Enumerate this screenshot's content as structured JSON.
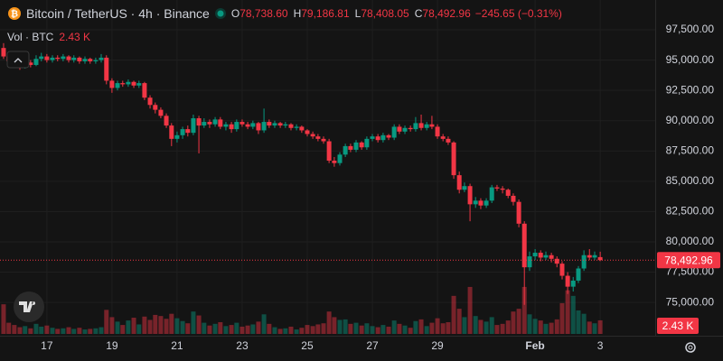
{
  "chart_data": {
    "type": "candlestick",
    "symbol": "Bitcoin / TetherUS · 4h · Binance",
    "ohlc": [
      {
        "key": "O",
        "value": "78,738.60"
      },
      {
        "key": "H",
        "value": "79,186.81"
      },
      {
        "key": "L",
        "value": "78,408.05"
      },
      {
        "key": "C",
        "value": "78,492.96"
      }
    ],
    "change": "−245.65 (−0.31%)",
    "volume_title": "Vol · BTC",
    "volume_label": "2.43 K",
    "last_price": {
      "value": 78492.96,
      "label": "78,492.96"
    },
    "up_color": "#089981",
    "down_color": "#f23645",
    "columns": [
      "x",
      "open",
      "high",
      "low",
      "close",
      "volume"
    ],
    "candles": [
      [
        15.67,
        96000,
        96400,
        95100,
        95300,
        5.3
      ],
      [
        15.83,
        95300,
        95500,
        94600,
        94900,
        2.0
      ],
      [
        16,
        94900,
        95200,
        94400,
        94700,
        1.6
      ],
      [
        16.17,
        94700,
        94900,
        94200,
        94500,
        1.2
      ],
      [
        16.33,
        94500,
        95100,
        94300,
        94800,
        1.4
      ],
      [
        16.5,
        94800,
        95000,
        94400,
        94600,
        1.0
      ],
      [
        16.67,
        94600,
        95400,
        94500,
        95100,
        1.8
      ],
      [
        16.83,
        95100,
        95600,
        94900,
        95300,
        1.3
      ],
      [
        17,
        95300,
        95500,
        94800,
        95000,
        1.5
      ],
      [
        17.17,
        95000,
        95400,
        94800,
        95200,
        1.1
      ],
      [
        17.33,
        95200,
        95400,
        94900,
        95100,
        0.9
      ],
      [
        17.5,
        95100,
        95500,
        94900,
        95300,
        1.0
      ],
      [
        17.67,
        95300,
        95400,
        94800,
        95000,
        1.2
      ],
      [
        17.83,
        95000,
        95400,
        94800,
        95200,
        0.9
      ],
      [
        18,
        95200,
        95300,
        94700,
        94900,
        1.1
      ],
      [
        18.17,
        94900,
        95300,
        94700,
        95100,
        0.8
      ],
      [
        18.33,
        95100,
        95200,
        94700,
        94900,
        0.9
      ],
      [
        18.5,
        94900,
        95200,
        94700,
        95000,
        1.0
      ],
      [
        18.67,
        95000,
        95500,
        94800,
        95200,
        1.2
      ],
      [
        18.83,
        95200,
        95400,
        93000,
        93300,
        4.3
      ],
      [
        19,
        93300,
        93500,
        92300,
        92700,
        3.0
      ],
      [
        19.17,
        92700,
        93300,
        92500,
        93100,
        2.2
      ],
      [
        19.33,
        93100,
        93300,
        92800,
        93000,
        1.6
      ],
      [
        19.5,
        93000,
        93400,
        92800,
        93200,
        2.4
      ],
      [
        19.67,
        93200,
        93300,
        92700,
        92900,
        2.9
      ],
      [
        19.83,
        92900,
        93300,
        92700,
        93100,
        1.7
      ],
      [
        20,
        93100,
        93200,
        91700,
        91900,
        3.1
      ],
      [
        20.17,
        91900,
        92100,
        91000,
        91300,
        2.5
      ],
      [
        20.33,
        91300,
        91500,
        90600,
        90900,
        3.4
      ],
      [
        20.5,
        90900,
        91100,
        90200,
        90400,
        3.2
      ],
      [
        20.67,
        90400,
        90600,
        89400,
        89600,
        2.7
      ],
      [
        20.83,
        89600,
        89800,
        87900,
        88500,
        3.6
      ],
      [
        21,
        88500,
        89100,
        88200,
        88800,
        2.8
      ],
      [
        21.17,
        88800,
        89500,
        88500,
        89300,
        2.3
      ],
      [
        21.33,
        89300,
        89600,
        88700,
        89000,
        1.9
      ],
      [
        21.5,
        89000,
        90500,
        88800,
        90200,
        4.0
      ],
      [
        21.67,
        90200,
        90400,
        87300,
        89600,
        3.3
      ],
      [
        21.83,
        89600,
        90200,
        89400,
        89900,
        2.0
      ],
      [
        22,
        89900,
        90100,
        89400,
        89700,
        1.5
      ],
      [
        22.17,
        89700,
        90300,
        89500,
        90100,
        1.8
      ],
      [
        22.33,
        90100,
        90300,
        89300,
        89500,
        2.1
      ],
      [
        22.5,
        89500,
        89900,
        89200,
        89700,
        1.4
      ],
      [
        22.67,
        89700,
        89900,
        89000,
        89300,
        1.6
      ],
      [
        22.83,
        89300,
        90100,
        89100,
        89900,
        2.0
      ],
      [
        23,
        89900,
        90100,
        89500,
        89700,
        1.3
      ],
      [
        23.17,
        89700,
        89900,
        89300,
        89500,
        1.5
      ],
      [
        23.33,
        89500,
        90000,
        89300,
        89800,
        1.7
      ],
      [
        23.5,
        89800,
        89900,
        88900,
        89200,
        2.2
      ],
      [
        23.67,
        89200,
        91000,
        89000,
        89900,
        3.5
      ],
      [
        23.83,
        89900,
        90100,
        89400,
        89600,
        1.8
      ],
      [
        24,
        89600,
        90000,
        89400,
        89800,
        1.2
      ],
      [
        24.17,
        89800,
        89900,
        89400,
        89600,
        0.9
      ],
      [
        24.33,
        89600,
        89900,
        89400,
        89700,
        1.0
      ],
      [
        24.5,
        89700,
        89800,
        89200,
        89400,
        1.3
      ],
      [
        24.67,
        89400,
        89700,
        89200,
        89500,
        0.8
      ],
      [
        24.83,
        89500,
        89600,
        89000,
        89200,
        1.1
      ],
      [
        25,
        89200,
        89300,
        88700,
        88900,
        1.6
      ],
      [
        25.17,
        88900,
        89100,
        88500,
        88700,
        1.4
      ],
      [
        25.33,
        88700,
        88900,
        88300,
        88500,
        1.7
      ],
      [
        25.5,
        88500,
        88700,
        88100,
        88300,
        1.9
      ],
      [
        25.67,
        88300,
        88500,
        86500,
        86700,
        4.0
      ],
      [
        25.83,
        86700,
        87000,
        86200,
        86500,
        3.0
      ],
      [
        26,
        86500,
        87400,
        86300,
        87200,
        2.5
      ],
      [
        26.17,
        87200,
        88100,
        87000,
        87900,
        2.6
      ],
      [
        26.33,
        87900,
        88100,
        87400,
        87600,
        1.8
      ],
      [
        26.5,
        87600,
        88400,
        87400,
        88200,
        2.0
      ],
      [
        26.67,
        88200,
        88300,
        87600,
        87800,
        1.5
      ],
      [
        26.83,
        87800,
        88700,
        87600,
        88500,
        1.9
      ],
      [
        27,
        88500,
        88900,
        88300,
        88700,
        1.4
      ],
      [
        27.17,
        88700,
        88900,
        88200,
        88400,
        1.2
      ],
      [
        27.33,
        88400,
        89000,
        88200,
        88800,
        1.6
      ],
      [
        27.5,
        88800,
        88900,
        88400,
        88600,
        1.3
      ],
      [
        27.67,
        88600,
        89700,
        88400,
        89500,
        2.4
      ],
      [
        27.83,
        89500,
        89700,
        88900,
        89100,
        1.8
      ],
      [
        28,
        89100,
        89600,
        88900,
        89400,
        1.5
      ],
      [
        28.17,
        89400,
        89600,
        89100,
        89300,
        1.1
      ],
      [
        28.33,
        89300,
        90300,
        89100,
        89800,
        2.3
      ],
      [
        28.5,
        89800,
        90500,
        89200,
        89400,
        2.6
      ],
      [
        28.67,
        89400,
        89900,
        89200,
        89700,
        1.4
      ],
      [
        28.83,
        89700,
        90400,
        89300,
        89500,
        2.0
      ],
      [
        29,
        89500,
        89700,
        88500,
        88700,
        2.8
      ],
      [
        29.17,
        88700,
        88900,
        88300,
        88500,
        1.9
      ],
      [
        29.33,
        88500,
        88700,
        88000,
        88200,
        2.1
      ],
      [
        29.5,
        88200,
        88300,
        85200,
        85500,
        6.8
      ],
      [
        29.67,
        85500,
        85800,
        84000,
        84300,
        4.5
      ],
      [
        29.83,
        84300,
        84900,
        84100,
        84600,
        3.0
      ],
      [
        30,
        84600,
        84800,
        81700,
        83100,
        8.4
      ],
      [
        30.17,
        83100,
        83700,
        82800,
        83400,
        3.2
      ],
      [
        30.33,
        83400,
        83600,
        82700,
        83000,
        2.5
      ],
      [
        30.5,
        83000,
        83600,
        82800,
        83400,
        2.2
      ],
      [
        30.67,
        83400,
        84700,
        83200,
        84500,
        3.0
      ],
      [
        30.83,
        84500,
        84700,
        84200,
        84400,
        1.6
      ],
      [
        31,
        84400,
        84600,
        84000,
        84300,
        1.8
      ],
      [
        31.17,
        84300,
        84400,
        83600,
        83800,
        2.4
      ],
      [
        31.33,
        83800,
        84000,
        83000,
        83300,
        4.0
      ],
      [
        31.5,
        83300,
        83500,
        81200,
        81500,
        4.5
      ],
      [
        31.67,
        81500,
        81700,
        74800,
        77900,
        8.4
      ],
      [
        31.83,
        77900,
        79200,
        77600,
        78800,
        3.5
      ],
      [
        32,
        78800,
        79400,
        78500,
        79100,
        2.7
      ],
      [
        32.17,
        79100,
        79300,
        78400,
        78700,
        2.4
      ],
      [
        32.33,
        78700,
        79200,
        78500,
        78900,
        1.8
      ],
      [
        32.5,
        78900,
        79100,
        78300,
        78600,
        2.0
      ],
      [
        32.67,
        78600,
        78800,
        77900,
        78200,
        2.6
      ],
      [
        32.83,
        78200,
        78400,
        76900,
        77200,
        5.5
      ],
      [
        33,
        77200,
        77500,
        75700,
        76300,
        7.8
      ],
      [
        33.17,
        76300,
        77100,
        75900,
        76800,
        6.8
      ],
      [
        33.33,
        76800,
        78000,
        76600,
        77800,
        4.2
      ],
      [
        33.5,
        77800,
        79300,
        77600,
        78900,
        3.6
      ],
      [
        33.67,
        78900,
        79400,
        78500,
        78700,
        2.2
      ],
      [
        33.83,
        78700,
        79200,
        78500,
        78900,
        1.9
      ],
      [
        34,
        78738.6,
        79186.81,
        78408.05,
        78492.96,
        2.43
      ]
    ],
    "xlim": [
      15.56,
      35.69
    ],
    "xticks": [
      17,
      19,
      21,
      23,
      25,
      27,
      29,
      {
        "value": 32,
        "label": "Feb"
      },
      {
        "value": 34,
        "label": "3"
      }
    ],
    "ylim": [
      72400,
      99960
    ],
    "yticks": [
      {
        "value": 75000,
        "label": "75,000.00"
      },
      {
        "value": 77500,
        "label": "77,500.00"
      },
      {
        "value": 80000,
        "label": "80,000.00"
      },
      {
        "value": 82500,
        "label": "82,500.00"
      },
      {
        "value": 85000,
        "label": "85,000.00"
      },
      {
        "value": 87500,
        "label": "87,500.00"
      },
      {
        "value": 90000,
        "label": "90,000.00"
      },
      {
        "value": 92500,
        "label": "92,500.00"
      },
      {
        "value": 95000,
        "label": "95,000.00"
      },
      {
        "value": 97500,
        "label": "97,500.00"
      }
    ],
    "grid": true
  }
}
